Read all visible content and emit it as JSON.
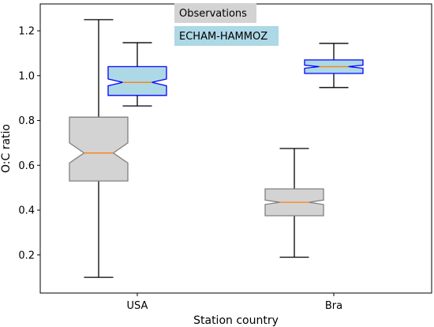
{
  "chart_data": {
    "type": "boxplot",
    "xlabel": "Station country",
    "ylabel": "O:C ratio",
    "categories": [
      "USA",
      "Bra"
    ],
    "ylim": [
      0.03,
      1.32
    ],
    "yticks": [
      "0.2",
      "0.4",
      "0.6",
      "0.8",
      "1.0",
      "1.2"
    ],
    "legend_placement": "top-center",
    "notched": true,
    "series": [
      {
        "name": "Observations",
        "fill": "#d3d3d3",
        "edge": "#808080",
        "boxes": [
          {
            "category": "USA",
            "whisker_low": 0.1,
            "q1": 0.53,
            "median": 0.655,
            "q3": 0.815,
            "whisker_high": 1.25,
            "notch_low": 0.61,
            "notch_high": 0.7
          },
          {
            "category": "Bra",
            "whisker_low": 0.19,
            "q1": 0.375,
            "median": 0.435,
            "q3": 0.495,
            "whisker_high": 0.675,
            "notch_low": 0.425,
            "notch_high": 0.445
          }
        ]
      },
      {
        "name": "ECHAM-HAMMOZ",
        "fill": "#add8e6",
        "edge": "#0000ff",
        "boxes": [
          {
            "category": "USA",
            "whisker_low": 0.865,
            "q1": 0.912,
            "median": 0.97,
            "q3": 1.04,
            "whisker_high": 1.147,
            "notch_low": 0.955,
            "notch_high": 0.985
          },
          {
            "category": "Bra",
            "whisker_low": 0.947,
            "q1": 1.01,
            "median": 1.04,
            "q3": 1.07,
            "whisker_high": 1.144,
            "notch_low": 1.033,
            "notch_high": 1.047
          }
        ]
      }
    ],
    "median_color": "#ff7f0e",
    "whisker_color": "#000000"
  }
}
